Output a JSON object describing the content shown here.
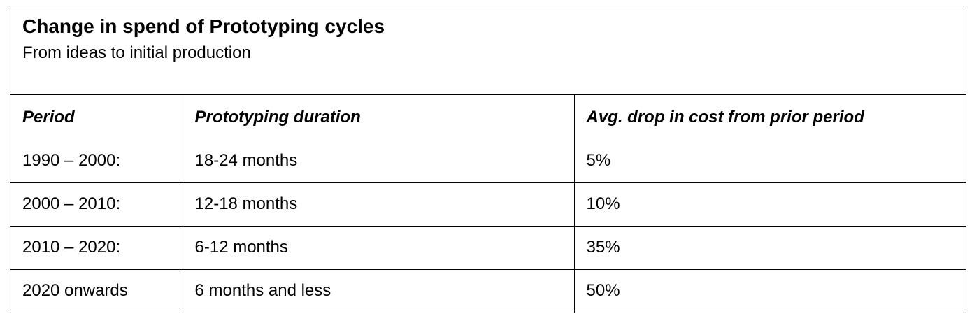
{
  "chart_data": {
    "type": "table",
    "title": "Change in spend of Prototyping cycles",
    "subtitle": "From ideas to initial production",
    "columns": [
      "Period",
      "Prototyping duration",
      "Avg. drop in cost from prior period"
    ],
    "rows": [
      [
        "1990 – 2000:",
        "18-24 months",
        "5%"
      ],
      [
        "2000 – 2010:",
        "12-18 months",
        "10%"
      ],
      [
        "2010 – 2020:",
        "6-12 months",
        "35%"
      ],
      [
        "2020 onwards",
        "6 months and less",
        "50%"
      ]
    ]
  }
}
